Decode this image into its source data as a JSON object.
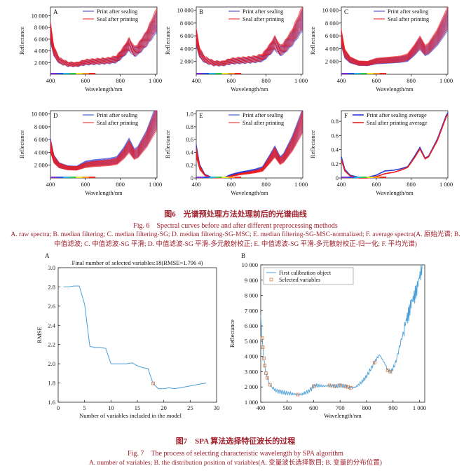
{
  "fig6": {
    "caption_cn": "图6　光谱预处理方法处理前后的光谱曲线",
    "caption_en": "Fig. 6　Spectral curves before and after different preprocessing methods",
    "subcaption": "A. raw spectra; B. median filtering; C. median filtering-SG; D. median filtering-SG-MSC; E. median filtering-SG-MSC-normalized; F. average spectra(A. 原始光谱; B. 中值滤波; C. 中值滤波-SG 平滑; D. 中值滤波-SG 平滑-多元散射校正; E. 中值滤波-SG 平滑-多元散射校正-归一化; F. 平均光谱)"
  },
  "fig7": {
    "caption_cn": "图7　SPA 算法选择特征波长的过程",
    "caption_en": "Fig. 7　The process of selecting characteristic wavelength by SPA algorithm",
    "subcaption": "A. number of variables; B. the distribution position of variables(A. 变量波长选择数目; B. 变量的分布位置)"
  },
  "colors": {
    "print_after_sealing": "#2b3ad6",
    "seal_after_printing": "#f01c1c",
    "spa_line": "#4a9fd8",
    "spa_marker": "#e07d45",
    "caption": "#a0202c"
  },
  "chart_data": [
    {
      "panel": "A",
      "type": "line",
      "xlabel": "Wavelength/nm",
      "ylabel": "Reflectance",
      "xlim": [
        400,
        1010
      ],
      "ylim": [
        0,
        11500
      ],
      "x_ticks": [
        400,
        600,
        800,
        "1 000"
      ],
      "y_ticks": [
        "2 000",
        "4 000",
        "6 000",
        "8 000",
        "10 000"
      ],
      "legend": [
        "Print after sealing",
        "Seal after printing"
      ],
      "x": [
        400,
        420,
        450,
        500,
        550,
        600,
        650,
        700,
        740,
        780,
        820,
        850,
        880,
        900,
        950,
        1000,
        1010
      ],
      "series": [
        {
          "name": "Print after sealing",
          "values": [
            7000,
            3800,
            2300,
            1700,
            1650,
            2000,
            2100,
            2200,
            2300,
            2500,
            3800,
            5000,
            3800,
            4100,
            6000,
            8500,
            9000
          ]
        },
        {
          "name": "Seal after printing",
          "values": [
            7500,
            4000,
            2400,
            1750,
            1700,
            2100,
            2200,
            2300,
            2400,
            2700,
            4000,
            5200,
            4000,
            4300,
            6200,
            9000,
            9500
          ]
        }
      ]
    },
    {
      "panel": "B",
      "type": "line",
      "xlabel": "Wavelength/nm",
      "ylabel": "Reflectance",
      "xlim": [
        400,
        1010
      ],
      "ylim": [
        0,
        10500
      ],
      "x_ticks": [
        400,
        600,
        800,
        "1 000"
      ],
      "y_ticks": [
        "2 000",
        "4 000",
        "6 000",
        "8 000",
        "10 000"
      ],
      "legend": [
        "Print after sealing",
        "Seal after printing"
      ],
      "x": [
        400,
        420,
        450,
        500,
        550,
        600,
        650,
        700,
        740,
        780,
        820,
        850,
        880,
        900,
        950,
        1000,
        1010
      ],
      "series": [
        {
          "name": "Print after sealing",
          "values": [
            5600,
            3200,
            2200,
            1700,
            1650,
            2000,
            2100,
            2200,
            2300,
            2500,
            3700,
            4800,
            3600,
            3900,
            5600,
            8000,
            8600
          ]
        },
        {
          "name": "Seal after printing",
          "values": [
            6000,
            3400,
            2300,
            1750,
            1700,
            2100,
            2200,
            2300,
            2400,
            2700,
            3900,
            5000,
            3800,
            4100,
            5900,
            8500,
            9000
          ]
        }
      ]
    },
    {
      "panel": "C",
      "type": "line",
      "xlabel": "Wavelength/nm",
      "ylabel": "Reflectance",
      "xlim": [
        400,
        1010
      ],
      "ylim": [
        0,
        10500
      ],
      "x_ticks": [
        400,
        600,
        800,
        "1 000"
      ],
      "y_ticks": [
        "2 000",
        "4 000",
        "6 000",
        "8 000",
        "10 000"
      ],
      "legend": [
        "Print after sealing",
        "Seal after printing"
      ],
      "x": [
        400,
        420,
        450,
        500,
        550,
        600,
        650,
        700,
        740,
        780,
        820,
        850,
        880,
        900,
        950,
        1000,
        1010
      ],
      "series": [
        {
          "name": "Print after sealing",
          "values": [
            5500,
            3100,
            2200,
            1700,
            1650,
            2000,
            2100,
            2200,
            2300,
            2500,
            3700,
            4800,
            3600,
            3900,
            5600,
            8000,
            8500
          ]
        },
        {
          "name": "Seal after printing",
          "values": [
            5900,
            3300,
            2300,
            1750,
            1700,
            2100,
            2200,
            2300,
            2400,
            2700,
            3900,
            5000,
            3800,
            4100,
            5900,
            8400,
            8900
          ]
        }
      ]
    },
    {
      "panel": "D",
      "type": "line",
      "xlabel": "Wavelength/nm",
      "ylabel": "Reflectance",
      "xlim": [
        400,
        1010
      ],
      "ylim": [
        0,
        10500
      ],
      "x_ticks": [
        400,
        600,
        800,
        "1 000"
      ],
      "y_ticks": [
        "2 000",
        "4 000",
        "6 000",
        "8 000",
        "10 000"
      ],
      "legend": [
        "Print after sealing",
        "Seal after printing"
      ],
      "x": [
        400,
        420,
        450,
        500,
        550,
        600,
        650,
        700,
        740,
        780,
        820,
        850,
        880,
        900,
        950,
        1000,
        1010
      ],
      "series": [
        {
          "name": "Print after sealing",
          "values": [
            5200,
            3000,
            2000,
            1600,
            1550,
            2200,
            2400,
            2500,
            2600,
            2800,
            4000,
            5200,
            3800,
            4100,
            6200,
            9200,
            9800
          ]
        },
        {
          "name": "Seal after printing",
          "values": [
            5000,
            2900,
            1950,
            1550,
            1500,
            2000,
            2200,
            2300,
            2400,
            2600,
            3700,
            4900,
            3600,
            3900,
            5900,
            8800,
            9400
          ]
        }
      ]
    },
    {
      "panel": "E",
      "type": "line",
      "xlabel": "Wavelength/nm",
      "ylabel": "Reflectance",
      "xlim": [
        400,
        1010
      ],
      "ylim": [
        0,
        1.05
      ],
      "x_ticks": [
        400,
        600,
        800,
        "1 000"
      ],
      "y_ticks": [
        "0",
        "0.2",
        "0.4",
        "0.6",
        "0.8",
        "1.0"
      ],
      "legend": [
        "Print after sealing",
        "Seal after printing"
      ],
      "x": [
        400,
        420,
        450,
        500,
        550,
        600,
        650,
        700,
        740,
        780,
        820,
        850,
        880,
        900,
        950,
        1000,
        1010
      ],
      "series": [
        {
          "name": "Print after sealing",
          "values": [
            0.45,
            0.18,
            0.05,
            0.0,
            0.0,
            0.05,
            0.08,
            0.1,
            0.12,
            0.15,
            0.3,
            0.42,
            0.28,
            0.32,
            0.55,
            0.85,
            0.92
          ]
        },
        {
          "name": "Seal after printing",
          "values": [
            0.4,
            0.16,
            0.04,
            0.0,
            0.0,
            0.03,
            0.06,
            0.08,
            0.1,
            0.13,
            0.28,
            0.4,
            0.26,
            0.3,
            0.52,
            0.82,
            0.9
          ]
        }
      ]
    },
    {
      "panel": "F",
      "type": "line",
      "xlabel": "Wavelength/nm",
      "ylabel": "Reflectance",
      "xlim": [
        400,
        1010
      ],
      "ylim": [
        0,
        0.95
      ],
      "x_ticks": [
        400,
        600,
        800,
        "1 000"
      ],
      "y_ticks": [
        "0",
        "0.2",
        "0.4",
        "0.6",
        "0.8"
      ],
      "legend": [
        "Print after sealing average",
        "Seal after printing average"
      ],
      "x": [
        400,
        420,
        450,
        500,
        550,
        600,
        650,
        700,
        740,
        780,
        820,
        850,
        880,
        900,
        950,
        1000,
        1010
      ],
      "series": [
        {
          "name": "Print after sealing average",
          "values": [
            0.3,
            0.12,
            0.04,
            0.01,
            0.01,
            0.04,
            0.1,
            0.11,
            0.13,
            0.16,
            0.31,
            0.43,
            0.28,
            0.31,
            0.55,
            0.88,
            0.92
          ]
        },
        {
          "name": "Seal after printing average",
          "values": [
            0.26,
            0.1,
            0.03,
            0.0,
            0.0,
            0.02,
            0.06,
            0.08,
            0.11,
            0.15,
            0.29,
            0.41,
            0.27,
            0.3,
            0.53,
            0.86,
            0.9
          ]
        }
      ]
    },
    {
      "panel": "A",
      "figure": "7",
      "type": "line",
      "title": "Final number of selected variables:18(RMSE=1.796 4)",
      "xlabel": "Number of variables included in the model",
      "ylabel": "RMSE",
      "xlim": [
        0,
        30
      ],
      "ylim": [
        1.6,
        3.0
      ],
      "x_ticks": [
        0,
        5,
        10,
        15,
        20,
        25,
        30
      ],
      "y_ticks": [
        "1.6",
        "1.8",
        "2.0",
        "2.2",
        "2.4",
        "2.6",
        "2.8",
        "3.0"
      ],
      "x": [
        1,
        2,
        3,
        4,
        5,
        6,
        7,
        8,
        9,
        10,
        11,
        12,
        13,
        14,
        15,
        16,
        17,
        18,
        19,
        20,
        21,
        22,
        23,
        24,
        25,
        26,
        27,
        28
      ],
      "values": [
        2.8,
        2.8,
        2.81,
        2.81,
        2.62,
        2.18,
        2.17,
        2.17,
        2.16,
        2.0,
        2.0,
        2.0,
        2.0,
        2.01,
        1.98,
        1.96,
        1.95,
        1.79,
        1.74,
        1.74,
        1.75,
        1.74,
        1.75,
        1.76,
        1.77,
        1.78,
        1.79,
        1.8
      ],
      "selected": {
        "x": 18,
        "y": 1.796
      }
    },
    {
      "panel": "B",
      "figure": "7",
      "type": "line",
      "xlabel": "Wavelength/nm",
      "ylabel": "Reflectance",
      "xlim": [
        400,
        1020
      ],
      "ylim": [
        1000,
        10000
      ],
      "x_ticks": [
        400,
        500,
        600,
        700,
        800,
        900,
        "1 000"
      ],
      "y_ticks": [
        "1 000",
        "2 000",
        "3 000",
        "4 000",
        "5 000",
        "6 000",
        "7 000",
        "8 000",
        "9 000",
        "10 000"
      ],
      "legend": [
        "First calibration object",
        "Selected variables"
      ],
      "x": [
        400,
        405,
        410,
        415,
        420,
        430,
        440,
        460,
        480,
        500,
        520,
        540,
        560,
        580,
        600,
        620,
        640,
        660,
        680,
        700,
        720,
        740,
        760,
        780,
        800,
        820,
        840,
        850,
        860,
        870,
        880,
        890,
        900,
        910,
        920,
        930,
        940,
        950,
        960,
        970,
        980,
        990,
        1000,
        1010
      ],
      "values": [
        6600,
        5200,
        4200,
        3400,
        2900,
        2300,
        2000,
        1750,
        1650,
        1600,
        1550,
        1500,
        1550,
        1700,
        2050,
        2100,
        2050,
        2100,
        2050,
        2100,
        2050,
        1950,
        2000,
        2300,
        2700,
        3300,
        3900,
        4100,
        3800,
        3500,
        3100,
        3000,
        3200,
        3600,
        4300,
        5000,
        5600,
        6400,
        6800,
        7600,
        7900,
        8400,
        9200,
        9900
      ],
      "selected_x": [
        405,
        408,
        412,
        415,
        420,
        425,
        435,
        540,
        600,
        660,
        680,
        700,
        720,
        730,
        740,
        830,
        880,
        890
      ]
    }
  ]
}
